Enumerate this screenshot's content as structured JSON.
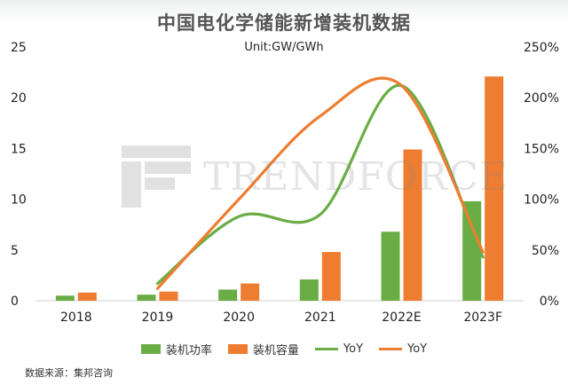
{
  "chart_data": {
    "type": "bar",
    "title": "中国电化学储能新增装机数据",
    "subtitle": "Unit:GW/GWh",
    "categories": [
      "2018",
      "2019",
      "2020",
      "2021",
      "2022E",
      "2023F"
    ],
    "series": [
      {
        "name": "装机功率",
        "kind": "bar",
        "axis": "left",
        "color": "#6aad45",
        "values": [
          0.5,
          0.6,
          1.1,
          2.1,
          6.8,
          9.8
        ]
      },
      {
        "name": "装机容量",
        "kind": "bar",
        "axis": "left",
        "color": "#ee7d31",
        "values": [
          0.8,
          0.9,
          1.7,
          4.8,
          14.9,
          22.1
        ]
      },
      {
        "name": "YoY",
        "kind": "line",
        "axis": "right",
        "color": "#6aad45",
        "values": [
          null,
          0.17,
          0.83,
          0.85,
          2.12,
          0.43
        ]
      },
      {
        "name": "YoY",
        "kind": "line",
        "axis": "right",
        "color": "#ee7d31",
        "values": [
          null,
          0.12,
          1.0,
          1.82,
          2.12,
          0.48
        ]
      }
    ],
    "y_left": {
      "min": 0,
      "max": 25,
      "ticks": [
        0,
        5,
        10,
        15,
        20,
        25
      ]
    },
    "y_right": {
      "min": 0,
      "max": 2.5,
      "ticks": [
        "0%",
        "50%",
        "100%",
        "150%",
        "200%",
        "250%"
      ]
    },
    "legend_position": "bottom",
    "grid": false
  },
  "watermark": {
    "text": "TRENDFORCE"
  },
  "source": "数据来源：集邦咨询"
}
